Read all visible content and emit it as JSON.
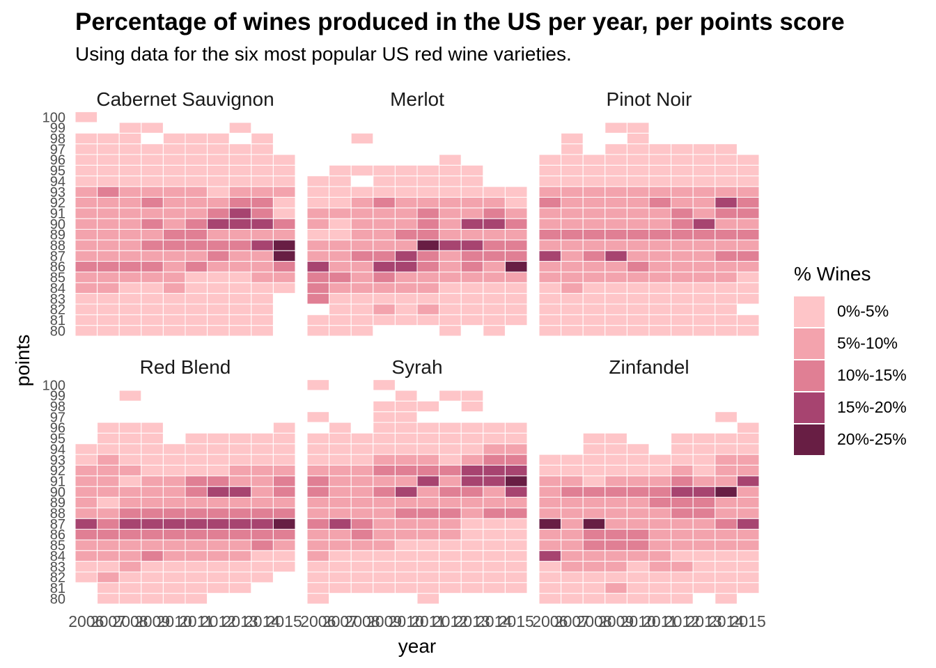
{
  "title": "Percentage of wines produced in the US per year, per points score",
  "subtitle": "Using data for the six most popular US red wine varieties.",
  "chart_data": {
    "type": "heatmap",
    "xlabel": "year",
    "ylabel": "points",
    "x": [
      "2006",
      "2007",
      "2008",
      "2009",
      "2010",
      "2011",
      "2012",
      "2013",
      "2014",
      "2015"
    ],
    "y": [
      80,
      81,
      82,
      83,
      84,
      85,
      86,
      87,
      88,
      89,
      90,
      91,
      92,
      93,
      94,
      95,
      96,
      97,
      98,
      99,
      100
    ],
    "legend_title": "% Wines",
    "legend_position": "right",
    "bins": [
      {
        "label": "0%-5%",
        "color": "#fec5c8"
      },
      {
        "label": "5%-10%",
        "color": "#f3a3ad"
      },
      {
        "label": "10%-15%",
        "color": "#e07f94"
      },
      {
        "label": "15%-20%",
        "color": "#a74470"
      },
      {
        "label": "20%-25%",
        "color": "#681e44"
      }
    ],
    "cell_value_note": "",
    "facets": [
      {
        "name": "Cabernet Sauvignon",
        "rows": {
          "100": "1.........",
          "99": "..11...1..",
          "98": "111.111.1.",
          "97": "111111111.",
          "96": "1111111111",
          "95": "1111111111",
          "94": "1111111111",
          "93": "2322221222",
          "92": "2223222331",
          "91": "2222223431",
          "90": "2223234443",
          "89": "2222332222",
          "88": "2223333345",
          "87": "2222223225",
          "86": "3333232223",
          "85": "2222211122",
          "84": "2211211111",
          "83": "111111111.",
          "82": "111111111.",
          "81": "111111111.",
          "80": "111111111."
        }
      },
      {
        "name": "Merlot",
        "rows": {
          "98": "..1.......",
          "96": "......1...",
          "95": ".1111111..",
          "94": "11.11111..",
          "93": "1111111111",
          "92": "1123222221",
          "91": "2222232232",
          "90": "2122232443",
          "89": "1122332222",
          "88": "2222254433",
          "87": "2233432333",
          "86": "4224432325",
          "85": "3323222222",
          "84": "3222221111",
          "83": "3111111111",
          "82": ".112121111",
          "81": "1111111111",
          "80": "111...1.1."
        }
      },
      {
        "name": "Pinot Noir",
        "rows": {
          "99": "...11.....",
          "98": ".1..1.....",
          "97": ".1.111111.",
          "96": "1111111111",
          "95": "1111111111",
          "94": "1111111111",
          "93": "2222222222",
          "92": "3222232243",
          "91": "2222223233",
          "90": "2222223422",
          "89": "3333333333",
          "88": "2222222222",
          "87": "4234222233",
          "86": "2222322222",
          "85": "2222222221",
          "84": "1211111111",
          "83": "1111111111",
          "82": "111111111.",
          "81": "1111111111",
          "80": "1111111111"
        }
      },
      {
        "name": "Red Blend",
        "rows": {
          "99": "..1.......",
          "96": ".111.....1",
          "95": ".111.11111",
          "94": "1111111111",
          "93": "1211111111",
          "92": "2221111222",
          "91": "2212233223",
          "90": "2222234423",
          "89": "2122222222",
          "88": "2233333333",
          "87": "4344444445",
          "86": "3333333333",
          "85": "2222222232",
          "84": "2223222211",
          "83": "1121111111",
          "82": "121111111.",
          "81": ".1111111..",
          "80": ".11111...."
        }
      },
      {
        "name": "Syrah",
        "rows": {
          "100": "1..1......",
          "99": "....1.11..",
          "98": "...111.1..",
          "97": "1..11.....",
          "96": ".1.1111111",
          "95": "1111111111",
          "94": "1111111122",
          "93": "1112221233",
          "92": "2223333444",
          "91": "3222242445",
          "90": "3223423324",
          "89": "2222222222",
          "88": "2222333233",
          "87": "3432222111",
          "86": "2232222111",
          "85": "2222111111",
          "84": "2111111111",
          "83": "1111111111",
          "82": "1111111111",
          "81": "1111111111",
          "80": "1....1...."
        }
      },
      {
        "name": "Zinfandel",
        "rows": {
          "97": "........1.",
          "96": ".........1",
          "95": "..11..1111",
          "94": "..111.1111",
          "93": "1111111122",
          "92": "1111112122",
          "91": "2212223224",
          "90": "2333334452",
          "89": "2222233322",
          "88": "2222223322",
          "87": "5252222234",
          "86": "2233322222",
          "85": "2233322222",
          "84": "4222221111",
          "83": "1222122111",
          "82": "1111111111",
          "81": "1112111111",
          "80": "1111111.1."
        }
      }
    ]
  }
}
